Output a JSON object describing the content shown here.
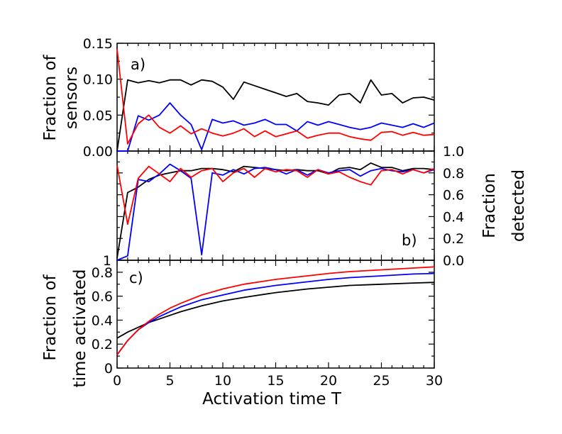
{
  "chart_data": {
    "type": "line",
    "x_label": "Activation time T",
    "x_ticks": [
      "0",
      "5",
      "10",
      "15",
      "20",
      "25",
      "30"
    ],
    "xlim": [
      0,
      30
    ],
    "colors": {
      "black": "#000000",
      "red": "#ff0000",
      "blue": "#0000ff"
    },
    "panels": [
      {
        "id": "a",
        "label": "a)",
        "ylabel_left": [
          "Fraction of",
          "sensors"
        ],
        "ylim": [
          0,
          0.15
        ],
        "y_ticks": [
          "0.00",
          "0.05",
          "0.10",
          "0.15"
        ],
        "y_tick_values": [
          0.0,
          0.05,
          0.1,
          0.15
        ],
        "series": [
          {
            "name": "black",
            "x": [
              0,
              1,
              2,
              3,
              4,
              5,
              6,
              7,
              8,
              9,
              10,
              11,
              12,
              13,
              14,
              15,
              16,
              17,
              18,
              19,
              20,
              21,
              22,
              23,
              24,
              25,
              26,
              27,
              28,
              29,
              30
            ],
            "y": [
              0.0,
              0.099,
              0.095,
              0.098,
              0.095,
              0.099,
              0.099,
              0.092,
              0.099,
              0.097,
              0.089,
              0.072,
              0.096,
              0.091,
              0.086,
              0.081,
              0.076,
              0.08,
              0.069,
              0.067,
              0.064,
              0.078,
              0.08,
              0.067,
              0.099,
              0.078,
              0.08,
              0.067,
              0.074,
              0.075,
              0.071
            ]
          },
          {
            "name": "blue",
            "x": [
              0,
              1,
              2,
              3,
              4,
              5,
              6,
              7,
              8,
              9,
              10,
              11,
              12,
              13,
              14,
              15,
              16,
              17,
              18,
              19,
              20,
              21,
              22,
              23,
              24,
              25,
              26,
              27,
              28,
              29,
              30
            ],
            "y": [
              0.0,
              0.0,
              0.049,
              0.043,
              0.05,
              0.067,
              0.05,
              0.037,
              0.002,
              0.044,
              0.039,
              0.042,
              0.036,
              0.039,
              0.044,
              0.037,
              0.037,
              0.028,
              0.041,
              0.036,
              0.041,
              0.037,
              0.033,
              0.03,
              0.033,
              0.039,
              0.036,
              0.033,
              0.038,
              0.033,
              0.039
            ]
          },
          {
            "name": "red",
            "x": [
              0,
              1,
              2,
              3,
              4,
              5,
              6,
              7,
              8,
              9,
              10,
              11,
              12,
              13,
              14,
              15,
              16,
              17,
              18,
              19,
              20,
              21,
              22,
              23,
              24,
              25,
              26,
              27,
              28,
              29,
              30
            ],
            "y": [
              0.142,
              0.01,
              0.038,
              0.05,
              0.033,
              0.025,
              0.035,
              0.024,
              0.031,
              0.025,
              0.021,
              0.025,
              0.031,
              0.02,
              0.028,
              0.02,
              0.024,
              0.028,
              0.018,
              0.022,
              0.025,
              0.025,
              0.02,
              0.017,
              0.015,
              0.026,
              0.027,
              0.022,
              0.026,
              0.022,
              0.023
            ]
          }
        ]
      },
      {
        "id": "b",
        "label": "b)",
        "ylabel_left_tick_top": "",
        "ylabel_left_tick_bottom": "1",
        "ylabel_right": [
          "Fraction",
          "detected"
        ],
        "ylim": [
          0,
          1.0
        ],
        "y_ticks_right": [
          "0.0",
          "0.2",
          "0.4",
          "0.6",
          "0.8",
          "1.0"
        ],
        "y_tick_values": [
          0.0,
          0.2,
          0.4,
          0.6,
          0.8,
          1.0
        ],
        "series": [
          {
            "name": "black",
            "x": [
              0,
              1,
              2,
              3,
              4,
              5,
              6,
              7,
              8,
              9,
              10,
              11,
              12,
              13,
              14,
              15,
              16,
              17,
              18,
              19,
              20,
              21,
              22,
              23,
              24,
              25,
              26,
              27,
              28,
              29,
              30
            ],
            "y": [
              0.02,
              0.62,
              0.67,
              0.74,
              0.78,
              0.8,
              0.82,
              0.82,
              0.84,
              0.84,
              0.83,
              0.81,
              0.86,
              0.85,
              0.84,
              0.83,
              0.82,
              0.83,
              0.82,
              0.82,
              0.79,
              0.84,
              0.85,
              0.83,
              0.89,
              0.85,
              0.85,
              0.82,
              0.84,
              0.84,
              0.83
            ]
          },
          {
            "name": "blue",
            "x": [
              0,
              1,
              2,
              3,
              4,
              5,
              6,
              7,
              8,
              9,
              10,
              11,
              12,
              13,
              14,
              15,
              16,
              17,
              18,
              19,
              20,
              21,
              22,
              23,
              24,
              25,
              26,
              27,
              28,
              29,
              30
            ],
            "y": [
              0.0,
              0.04,
              0.74,
              0.72,
              0.79,
              0.88,
              0.82,
              0.75,
              0.05,
              0.8,
              0.78,
              0.83,
              0.79,
              0.84,
              0.85,
              0.83,
              0.79,
              0.83,
              0.78,
              0.83,
              0.8,
              0.82,
              0.83,
              0.77,
              0.82,
              0.84,
              0.82,
              0.81,
              0.83,
              0.8,
              0.83
            ]
          },
          {
            "name": "red",
            "x": [
              0,
              1,
              2,
              3,
              4,
              5,
              6,
              7,
              8,
              9,
              10,
              11,
              12,
              13,
              14,
              15,
              16,
              17,
              18,
              19,
              20,
              21,
              22,
              23,
              24,
              25,
              26,
              27,
              28,
              29,
              30
            ],
            "y": [
              0.87,
              0.33,
              0.75,
              0.86,
              0.79,
              0.72,
              0.84,
              0.76,
              0.82,
              0.84,
              0.72,
              0.8,
              0.84,
              0.76,
              0.84,
              0.81,
              0.83,
              0.82,
              0.76,
              0.83,
              0.79,
              0.81,
              0.76,
              0.72,
              0.69,
              0.82,
              0.83,
              0.79,
              0.83,
              0.8,
              0.84
            ]
          }
        ]
      },
      {
        "id": "c",
        "label": "c)",
        "ylabel_left": [
          "Fraction of",
          "time activated"
        ],
        "ylim": [
          0,
          0.9
        ],
        "y_ticks": [
          "0",
          "0.2",
          "0.4",
          "0.6",
          "0.8"
        ],
        "y_tick_values": [
          0.0,
          0.2,
          0.4,
          0.6,
          0.8
        ],
        "series": [
          {
            "name": "black",
            "x": [
              0,
              1,
              2,
              3,
              4,
              5,
              6,
              8,
              10,
              12,
              15,
              18,
              20,
              22,
              25,
              28,
              30
            ],
            "y": [
              0.25,
              0.3,
              0.34,
              0.38,
              0.41,
              0.44,
              0.47,
              0.52,
              0.56,
              0.59,
              0.63,
              0.66,
              0.675,
              0.69,
              0.7,
              0.71,
              0.715
            ]
          },
          {
            "name": "blue",
            "x": [
              0,
              1,
              2,
              3,
              4,
              5,
              6,
              8,
              10,
              12,
              15,
              18,
              20,
              22,
              25,
              28,
              30
            ],
            "y": [
              0.11,
              0.23,
              0.32,
              0.38,
              0.43,
              0.47,
              0.51,
              0.57,
              0.61,
              0.65,
              0.69,
              0.72,
              0.74,
              0.755,
              0.77,
              0.785,
              0.79
            ]
          },
          {
            "name": "red",
            "x": [
              0,
              1,
              2,
              3,
              4,
              5,
              6,
              8,
              10,
              12,
              15,
              18,
              20,
              22,
              25,
              28,
              30
            ],
            "y": [
              0.11,
              0.23,
              0.32,
              0.39,
              0.45,
              0.5,
              0.54,
              0.61,
              0.66,
              0.7,
              0.74,
              0.77,
              0.79,
              0.805,
              0.82,
              0.835,
              0.845
            ]
          }
        ]
      }
    ]
  }
}
